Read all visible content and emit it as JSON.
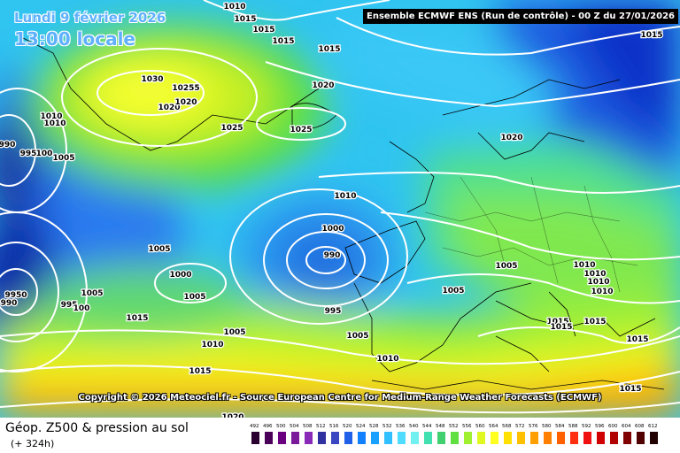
{
  "map": {
    "date_text": "Lundi 9 février 2026",
    "time_text": "13:00 locale",
    "header": "Ensemble ECMWF ENS  (Run de contrôle)  -  00 Z du 27/01/2026",
    "copyright": "Copyright © 2026 Meteociel.fr - Source European Centre for Medium-Range Weather Forecasts (ECMWF)",
    "pressure_labels": [
      {
        "text": "1010"
      },
      {
        "text": "1015"
      },
      {
        "text": "1015"
      },
      {
        "text": "1015"
      },
      {
        "text": "1015"
      },
      {
        "text": "1015"
      },
      {
        "text": "1030"
      },
      {
        "text": "10255"
      },
      {
        "text": "1020"
      },
      {
        "text": "1020"
      },
      {
        "text": "1020"
      },
      {
        "text": "1025"
      },
      {
        "text": "1025"
      },
      {
        "text": "1010"
      },
      {
        "text": "1010"
      },
      {
        "text": "990"
      },
      {
        "text": "995"
      },
      {
        "text": "100"
      },
      {
        "text": "1005"
      },
      {
        "text": "1020"
      },
      {
        "text": "1010"
      },
      {
        "text": "1000"
      },
      {
        "text": "1005"
      },
      {
        "text": "990"
      },
      {
        "text": "1000"
      },
      {
        "text": "1005"
      },
      {
        "text": "9950"
      },
      {
        "text": "990"
      },
      {
        "text": "1005"
      },
      {
        "text": "995"
      },
      {
        "text": "100"
      },
      {
        "text": "1015"
      },
      {
        "text": "995"
      },
      {
        "text": "1005"
      },
      {
        "text": "1010"
      },
      {
        "text": "1015"
      },
      {
        "text": "1020"
      },
      {
        "text": "1010"
      },
      {
        "text": "1005"
      },
      {
        "text": "1005"
      },
      {
        "text": "1005"
      },
      {
        "text": "1010"
      },
      {
        "text": "1010"
      },
      {
        "text": "1010"
      },
      {
        "text": "1010"
      },
      {
        "text": "1015"
      },
      {
        "text": "1015"
      },
      {
        "text": "1015"
      },
      {
        "text": "1015"
      },
      {
        "text": "1015"
      }
    ]
  },
  "footer": {
    "product_title": "Géop. Z500 & pression au sol",
    "forecast_step": "(+ 324h)"
  },
  "legend": {
    "labels": [
      "492",
      "496",
      "500",
      "504",
      "508",
      "512",
      "516",
      "520",
      "524",
      "528",
      "532",
      "536",
      "540",
      "544",
      "548",
      "552",
      "556",
      "560",
      "564",
      "568",
      "572",
      "576",
      "580",
      "584",
      "588",
      "592",
      "596",
      "600",
      "604",
      "608",
      "612"
    ],
    "colors": [
      "#2a0030",
      "#4a0058",
      "#6a0080",
      "#7a1a9a",
      "#8a2ab8",
      "#3030a0",
      "#3a46c0",
      "#2060e8",
      "#1080ff",
      "#1aa0ff",
      "#30c0ff",
      "#50dcff",
      "#70f0f0",
      "#40e0b0",
      "#40d070",
      "#60e040",
      "#a0f030",
      "#e0f820",
      "#ffff20",
      "#ffe000",
      "#ffc000",
      "#ffa000",
      "#ff8000",
      "#ff6000",
      "#ff3010",
      "#f01010",
      "#d00000",
      "#b00000",
      "#800000",
      "#500000",
      "#200000"
    ]
  }
}
